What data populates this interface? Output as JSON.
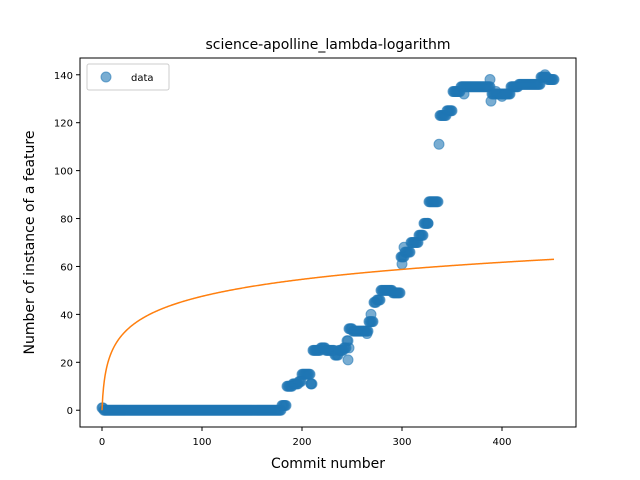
{
  "chart_data": {
    "type": "scatter",
    "title": "science-apolline_lambda-logarithm",
    "xlabel": "Commit number",
    "ylabel": "Number of instance of a feature",
    "xlim": [
      -22,
      474
    ],
    "ylim": [
      -7,
      147
    ],
    "xticks": [
      0,
      100,
      200,
      300,
      400
    ],
    "yticks": [
      0,
      20,
      40,
      60,
      80,
      100,
      120,
      140
    ],
    "grid": false,
    "legend_position": "top-left",
    "colors": {
      "data": "#1f77b4",
      "fit": "#ff7f0e"
    },
    "series": [
      {
        "name": "data",
        "kind": "scatter",
        "segments": [
          {
            "x_start": 0,
            "x_end": 1,
            "y": 1
          },
          {
            "x_start": 2,
            "x_end": 179,
            "y": 0
          },
          {
            "x_start": 180,
            "x_end": 184,
            "y": 2
          },
          {
            "x_start": 185,
            "x_end": 190,
            "y": 10
          },
          {
            "x_start": 191,
            "x_end": 196,
            "y": 11
          },
          {
            "x_start": 197,
            "x_end": 199,
            "y": 12
          },
          {
            "x_start": 200,
            "x_end": 208,
            "y": 15
          },
          {
            "x_start": 209,
            "x_end": 210,
            "y": 11
          },
          {
            "x_start": 211,
            "x_end": 218,
            "y": 25
          },
          {
            "x_start": 219,
            "x_end": 223,
            "y": 26
          },
          {
            "x_start": 224,
            "x_end": 232,
            "y": 25
          },
          {
            "x_start": 233,
            "x_end": 236,
            "y": 23
          },
          {
            "x_start": 237,
            "x_end": 241,
            "y": 25
          },
          {
            "x_start": 242,
            "x_end": 244,
            "y": 26
          },
          {
            "x_start": 245,
            "x_end": 246,
            "y": 29
          },
          {
            "x_start": 247,
            "x_end": 250,
            "y": 34
          },
          {
            "x_start": 251,
            "x_end": 266,
            "y": 33
          },
          {
            "x_start": 267,
            "x_end": 271,
            "y": 37
          },
          {
            "x_start": 272,
            "x_end": 274,
            "y": 45
          },
          {
            "x_start": 275,
            "x_end": 278,
            "y": 46
          },
          {
            "x_start": 279,
            "x_end": 290,
            "y": 50
          },
          {
            "x_start": 291,
            "x_end": 298,
            "y": 49
          },
          {
            "x_start": 299,
            "x_end": 302,
            "y": 64
          },
          {
            "x_start": 303,
            "x_end": 308,
            "y": 66
          },
          {
            "x_start": 309,
            "x_end": 316,
            "y": 70
          },
          {
            "x_start": 317,
            "x_end": 321,
            "y": 73
          },
          {
            "x_start": 322,
            "x_end": 326,
            "y": 78
          },
          {
            "x_start": 327,
            "x_end": 336,
            "y": 87
          },
          {
            "x_start": 338,
            "x_end": 344,
            "y": 123
          },
          {
            "x_start": 345,
            "x_end": 350,
            "y": 125
          },
          {
            "x_start": 351,
            "x_end": 358,
            "y": 133
          },
          {
            "x_start": 359,
            "x_end": 364,
            "y": 135
          },
          {
            "x_start": 365,
            "x_end": 388,
            "y": 135
          },
          {
            "x_start": 390,
            "x_end": 408,
            "y": 132
          },
          {
            "x_start": 409,
            "x_end": 416,
            "y": 135
          },
          {
            "x_start": 417,
            "x_end": 438,
            "y": 136
          },
          {
            "x_start": 439,
            "x_end": 445,
            "y": 139
          },
          {
            "x_start": 446,
            "x_end": 452,
            "y": 138
          }
        ],
        "extra_points": [
          [
            209,
            11
          ],
          [
            246,
            21
          ],
          [
            247,
            26
          ],
          [
            265,
            32
          ],
          [
            269,
            40
          ],
          [
            300,
            61
          ],
          [
            302,
            68
          ],
          [
            326,
            78
          ],
          [
            337,
            111
          ],
          [
            362,
            132
          ],
          [
            388,
            138
          ],
          [
            389,
            129
          ],
          [
            394,
            133
          ],
          [
            400,
            131
          ],
          [
            404,
            132
          ],
          [
            443,
            140
          ]
        ]
      },
      {
        "name": "",
        "kind": "line",
        "function": "a*ln(x+1)",
        "a": 10.3,
        "x_range": [
          0,
          452
        ]
      }
    ]
  },
  "legend": {
    "label": "data"
  }
}
